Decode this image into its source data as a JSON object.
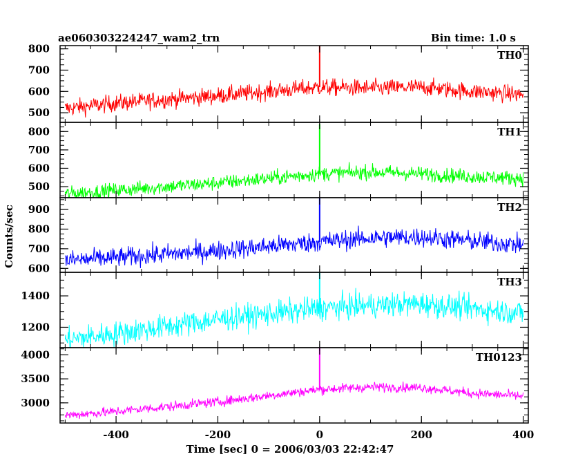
{
  "header": {
    "title": "ae060303224247_wam2_trn",
    "bin_time": "Bin time: 1.0 s"
  },
  "chart_data": {
    "type": "line",
    "xlabel": "Time [sec] 0 = 2006/03/03 22:42:47",
    "ylabel": "Counts/sec",
    "xlim": [
      -510,
      410
    ],
    "x_ticks": [
      -400,
      -200,
      0,
      200,
      400
    ],
    "grid": false,
    "panels": [
      {
        "name": "TH0",
        "color": "#ff0000",
        "ylim": [
          455,
          815
        ],
        "ticks": [
          500,
          600,
          700,
          800
        ],
        "trend": [
          [
            -500,
            520
          ],
          [
            -400,
            545
          ],
          [
            -200,
            580
          ],
          [
            0,
            620
          ],
          [
            100,
            615
          ],
          [
            200,
            620
          ],
          [
            300,
            600
          ],
          [
            400,
            585
          ]
        ],
        "noise": 28,
        "spike": {
          "x": 0,
          "y": 815
        }
      },
      {
        "name": "TH1",
        "color": "#00ff00",
        "ylim": [
          440,
          850
        ],
        "ticks": [
          500,
          600,
          700,
          800
        ],
        "trend": [
          [
            -500,
            460
          ],
          [
            -400,
            480
          ],
          [
            -200,
            520
          ],
          [
            0,
            570
          ],
          [
            100,
            580
          ],
          [
            200,
            570
          ],
          [
            300,
            555
          ],
          [
            400,
            545
          ]
        ],
        "noise": 28,
        "spike": {
          "x": 0,
          "y": 840
        }
      },
      {
        "name": "TH2",
        "color": "#0000ff",
        "ylim": [
          580,
          960
        ],
        "ticks": [
          600,
          700,
          800,
          900
        ],
        "trend": [
          [
            -500,
            640
          ],
          [
            -400,
            655
          ],
          [
            -200,
            690
          ],
          [
            0,
            735
          ],
          [
            100,
            755
          ],
          [
            200,
            760
          ],
          [
            300,
            740
          ],
          [
            400,
            720
          ]
        ],
        "noise": 35,
        "spike": {
          "x": 0,
          "y": 965
        }
      },
      {
        "name": "TH3",
        "color": "#00ffff",
        "ylim": [
          1070,
          1550
        ],
        "ticks": [
          1200,
          1400
        ],
        "trend": [
          [
            -500,
            1120
          ],
          [
            -400,
            1160
          ],
          [
            -200,
            1250
          ],
          [
            0,
            1320
          ],
          [
            100,
            1340
          ],
          [
            200,
            1350
          ],
          [
            300,
            1320
          ],
          [
            400,
            1290
          ]
        ],
        "noise": 55,
        "spike": {
          "x": 0,
          "y": 1560
        }
      },
      {
        "name": "TH0123",
        "color": "#ff00ff",
        "ylim": [
          2580,
          4150
        ],
        "ticks": [
          3000,
          3500,
          4000
        ],
        "trend": [
          [
            -500,
            2740
          ],
          [
            -400,
            2820
          ],
          [
            -200,
            3020
          ],
          [
            0,
            3280
          ],
          [
            100,
            3330
          ],
          [
            200,
            3320
          ],
          [
            300,
            3200
          ],
          [
            400,
            3140
          ]
        ],
        "noise": 70,
        "spike": {
          "x": 0,
          "y": 4200
        }
      }
    ]
  }
}
